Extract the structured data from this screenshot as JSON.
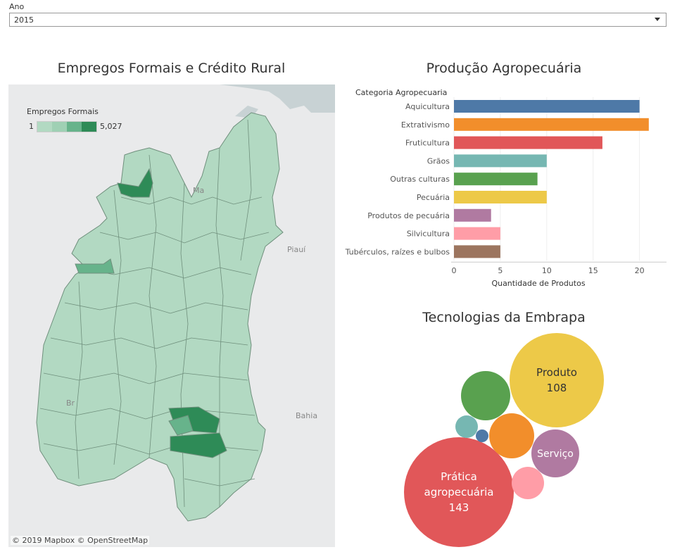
{
  "filter": {
    "label": "Ano",
    "selected": "2015"
  },
  "map": {
    "title": "Empregos Formais e Crédito Rural",
    "legend_title": "Empregos Formais",
    "legend_min": "1",
    "legend_max": "5,027",
    "legend_colors": [
      "#b2d9c2",
      "#9fd0b4",
      "#67b38b",
      "#2e8b57"
    ],
    "credit": "© 2019 Mapbox © OpenStreetMap",
    "places": {
      "piaui": "Piauí",
      "bahia": "Bahia",
      "ma": "Ma",
      "br": "Br"
    }
  },
  "chart_data": [
    {
      "type": "bar",
      "title": "Produção Agropecuária",
      "category_header": "Categoria Agropecuaria",
      "categories": [
        "Aquicultura",
        "Extrativismo",
        "Fruticultura",
        "Grãos",
        "Outras culturas",
        "Pecuária",
        "Produtos de pecuária",
        "Silvicultura",
        "Tubérculos, raízes e bulbos"
      ],
      "values": [
        20,
        21,
        16,
        10,
        9,
        10,
        4,
        5,
        5
      ],
      "colors": [
        "#4e79a7",
        "#f28e2b",
        "#e15759",
        "#76b7b2",
        "#59a14f",
        "#edc948",
        "#b07aa1",
        "#ff9da7",
        "#9c755f"
      ],
      "xlabel": "Quantidade de Produtos",
      "xticks": [
        0,
        5,
        10,
        15,
        20
      ],
      "xlim": [
        0,
        22
      ]
    },
    {
      "type": "bubble",
      "title": "Tecnologias da Embrapa",
      "bubbles": [
        {
          "label": "Produto",
          "value": "108",
          "color": "#edc948"
        },
        {
          "label": "Prática agropecuária",
          "value": "143",
          "color": "#e15759"
        },
        {
          "label": "Serviço",
          "value": "",
          "color": "#b07aa1"
        },
        {
          "label": "",
          "value": "",
          "color": "#59a14f"
        },
        {
          "label": "",
          "value": "",
          "color": "#f28e2b"
        },
        {
          "label": "",
          "value": "",
          "color": "#76b7b2"
        },
        {
          "label": "",
          "value": "",
          "color": "#4e79a7"
        },
        {
          "label": "",
          "value": "",
          "color": "#ff9da7"
        }
      ]
    }
  ]
}
